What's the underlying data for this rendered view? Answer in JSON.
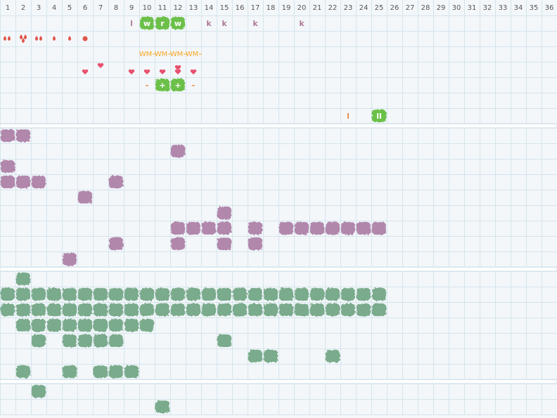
{
  "columns": [
    1,
    2,
    3,
    4,
    5,
    6,
    7,
    8,
    9,
    10,
    11,
    12,
    13,
    14,
    15,
    16,
    17,
    18,
    19,
    20,
    21,
    22,
    23,
    24,
    25,
    26,
    27,
    28,
    29,
    30,
    31,
    32,
    33,
    34,
    35,
    36
  ],
  "marks": {
    "row1": [
      "l",
      "w",
      "r",
      "w",
      "k",
      "k",
      "k",
      "k"
    ],
    "row3": [
      "WM",
      "WM",
      "WM",
      "WM"
    ],
    "row5": [
      "–",
      "+",
      "+",
      "–"
    ],
    "row7": [
      "l",
      "ll"
    ]
  }
}
